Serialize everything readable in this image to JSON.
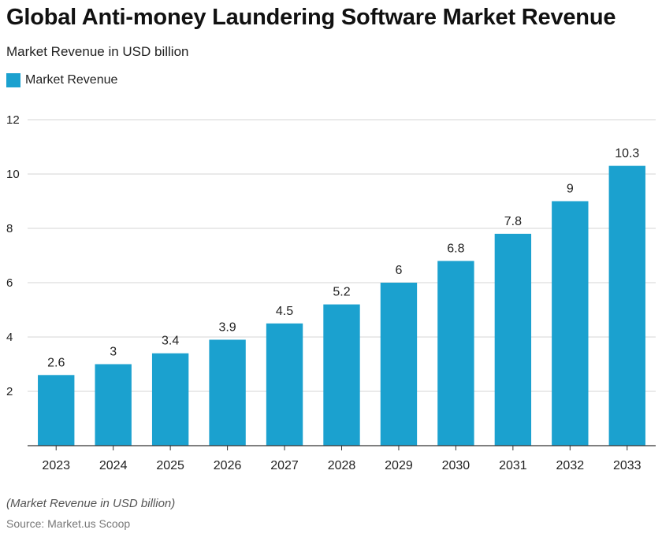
{
  "colors": {
    "bar": "#1ba1cf",
    "grid": "#d4d4d4",
    "axis": "#333333",
    "text": "#222222"
  },
  "footer": {
    "note": "(Market Revenue in USD billion)",
    "source": "Source: Market.us Scoop"
  },
  "chart_data": {
    "type": "bar",
    "title": "Global Anti-money Laundering Software Market Revenue",
    "subtitle": "Market Revenue in USD billion",
    "categories": [
      "2023",
      "2024",
      "2025",
      "2026",
      "2027",
      "2028",
      "2029",
      "2030",
      "2031",
      "2032",
      "2033"
    ],
    "series": [
      {
        "name": "Market Revenue",
        "values": [
          2.6,
          3,
          3.4,
          3.9,
          4.5,
          5.2,
          6,
          6.8,
          7.8,
          9,
          10.3
        ]
      }
    ],
    "data_labels": [
      "2.6",
      "3",
      "3.4",
      "3.9",
      "4.5",
      "5.2",
      "6",
      "6.8",
      "7.8",
      "9",
      "10.3"
    ],
    "ylim": [
      0,
      12
    ],
    "yticks": [
      2,
      4,
      6,
      8,
      10,
      12
    ],
    "grid": true,
    "legend": "top-left"
  }
}
